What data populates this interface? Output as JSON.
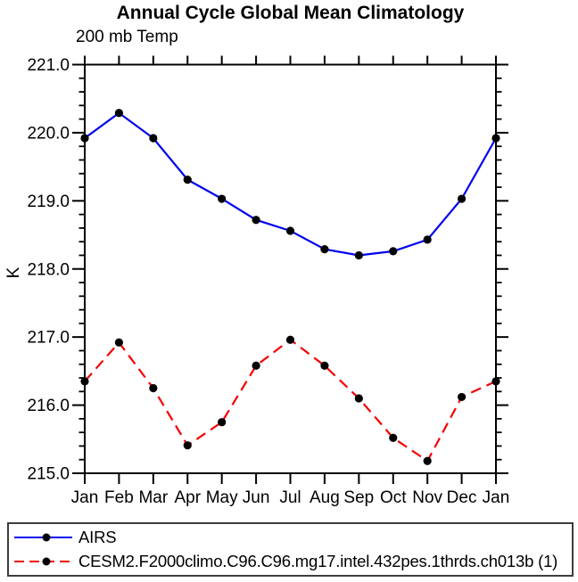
{
  "title": "Annual Cycle Global Mean Climatology",
  "subtitle": "200 mb Temp",
  "ylabel": "K",
  "chart_data": {
    "type": "line",
    "categories": [
      "Jan",
      "Feb",
      "Mar",
      "Apr",
      "May",
      "Jun",
      "Jul",
      "Aug",
      "Sep",
      "Oct",
      "Nov",
      "Dec",
      "Jan"
    ],
    "series": [
      {
        "name": "AIRS",
        "color": "#0000ee",
        "line_style": "solid",
        "marker": "circle",
        "marker_color": "#000000",
        "values": [
          219.92,
          220.29,
          219.92,
          219.31,
          219.03,
          218.72,
          218.56,
          218.29,
          218.2,
          218.26,
          218.43,
          219.03,
          219.92
        ]
      },
      {
        "name": "CESM2.F2000climo.C96.C96.mg17.intel.432pes.1thrds.ch013b (1)",
        "color": "#f40000",
        "line_style": "dashed",
        "marker": "circle",
        "marker_color": "#000000",
        "values": [
          216.35,
          216.92,
          216.25,
          215.41,
          215.75,
          216.58,
          216.96,
          216.58,
          216.1,
          215.52,
          215.18,
          216.12,
          216.35
        ]
      }
    ],
    "ylim": [
      215.0,
      221.0
    ],
    "ytick_step": 1.0,
    "yminor_step": 0.2,
    "ytick_labels": [
      "215.0",
      "216.0",
      "217.0",
      "218.0",
      "219.0",
      "220.0",
      "221.0"
    ],
    "grid": false,
    "legend_position": "bottom",
    "axis_color": "#000000"
  }
}
